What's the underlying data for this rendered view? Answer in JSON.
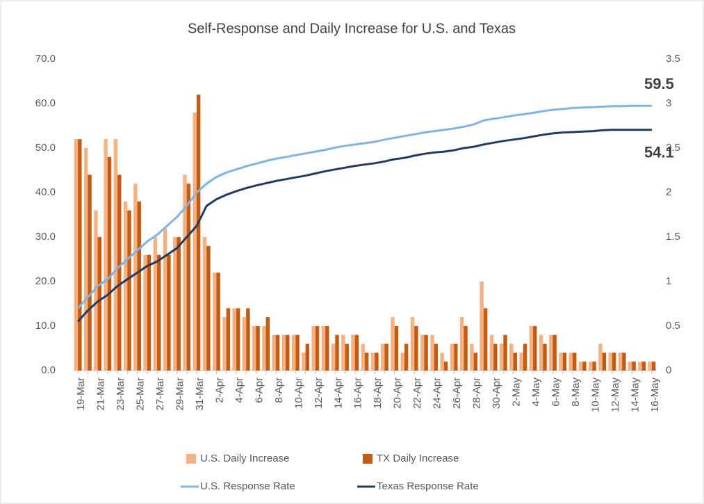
{
  "chart_data": {
    "type": "combo",
    "title": "Self-Response and Daily Increase for U.S. and Texas",
    "categories": [
      "19-Mar",
      null,
      "21-Mar",
      null,
      "23-Mar",
      null,
      "25-Mar",
      null,
      "27-Mar",
      null,
      "29-Mar",
      null,
      "31-Mar",
      null,
      "2-Apr",
      null,
      "4-Apr",
      null,
      "6-Apr",
      null,
      "8-Apr",
      null,
      "10-Apr",
      null,
      "12-Apr",
      null,
      "14-Apr",
      null,
      "16-Apr",
      null,
      "18-Apr",
      null,
      "20-Apr",
      null,
      "22-Apr",
      null,
      "24-Apr",
      null,
      "26-Apr",
      null,
      "28-Apr",
      null,
      "30-Apr",
      null,
      "2-May",
      null,
      "4-May",
      null,
      "6-May",
      null,
      "8-May",
      null,
      "10-May",
      null,
      "12-May",
      null,
      "14-May",
      null,
      "16-May"
    ],
    "ylim": [
      0,
      70
    ],
    "yticks": [
      {
        "value": 0,
        "label": "0.0"
      },
      {
        "value": 10,
        "label": "10.0"
      },
      {
        "value": 20,
        "label": "20.0"
      },
      {
        "value": 30,
        "label": "30.0"
      },
      {
        "value": 40,
        "label": "40.0"
      },
      {
        "value": 50,
        "label": "50.0"
      },
      {
        "value": 60,
        "label": "60.0"
      },
      {
        "value": 70,
        "label": "70.0"
      }
    ],
    "y2lim": [
      0,
      3.5
    ],
    "y2ticks": [
      0,
      0.5,
      1,
      1.5,
      2,
      2.5,
      3,
      3.5
    ],
    "grid": false,
    "legend": "bottom",
    "series": [
      {
        "name": "U.S. Daily Increase",
        "type": "bar",
        "axis": "y2",
        "color": "#f4b183",
        "values": [
          2.6,
          2.5,
          1.8,
          2.6,
          2.6,
          1.9,
          2.1,
          1.3,
          1.5,
          1.6,
          1.5,
          2.2,
          2.9,
          1.5,
          1.1,
          0.6,
          0.7,
          0.6,
          0.5,
          0.5,
          0.4,
          0.4,
          0.4,
          0.2,
          0.5,
          0.5,
          0.3,
          0.4,
          0.4,
          0.3,
          0.2,
          0.3,
          0.6,
          0.2,
          0.6,
          0.4,
          0.4,
          0.2,
          0.3,
          0.6,
          0.3,
          1.0,
          0.4,
          0.3,
          0.3,
          0.2,
          0.5,
          0.4,
          0.4,
          0.2,
          0.2,
          0.1,
          0.1,
          0.3,
          0.2,
          0.2,
          0.1,
          0.1,
          0.1
        ]
      },
      {
        "name": "TX Daily Increase",
        "type": "bar",
        "axis": "y2",
        "color": "#c55a11",
        "values": [
          2.6,
          2.2,
          1.5,
          2.4,
          2.2,
          1.8,
          1.9,
          1.3,
          1.3,
          1.3,
          1.5,
          2.1,
          3.1,
          1.4,
          1.1,
          0.7,
          0.7,
          0.7,
          0.5,
          0.6,
          0.4,
          0.4,
          0.4,
          0.3,
          0.5,
          0.5,
          0.4,
          0.3,
          0.4,
          0.2,
          0.2,
          0.3,
          0.5,
          0.3,
          0.5,
          0.4,
          0.3,
          0.1,
          0.3,
          0.5,
          0.2,
          0.7,
          0.3,
          0.4,
          0.2,
          0.3,
          0.5,
          0.3,
          0.4,
          0.2,
          0.2,
          0.1,
          0.1,
          0.2,
          0.2,
          0.2,
          0.1,
          0.1,
          0.1
        ]
      },
      {
        "name": "U.S. Response Rate",
        "type": "line",
        "color": "#7fb2e5",
        "label_last": "above",
        "values": [
          14,
          16.5,
          19,
          20.5,
          23,
          25,
          27,
          29,
          30.5,
          32.5,
          34.5,
          37,
          40,
          42,
          43.5,
          44.5,
          45.2,
          45.9,
          46.5,
          47.1,
          47.6,
          48,
          48.4,
          48.8,
          49.2,
          49.6,
          50.1,
          50.5,
          50.8,
          51.1,
          51.4,
          51.9,
          52.3,
          52.7,
          53.1,
          53.5,
          53.8,
          54.1,
          54.4,
          54.8,
          55.3,
          56.2,
          56.6,
          56.9,
          57.3,
          57.6,
          57.9,
          58.3,
          58.6,
          58.8,
          59.0,
          59.1,
          59.2,
          59.3,
          59.4,
          59.4,
          59.5,
          59.5,
          59.5
        ]
      },
      {
        "name": "Texas Response Rate",
        "type": "line",
        "color": "#1f3b63",
        "label_last": "below",
        "values": [
          11,
          13.5,
          15.5,
          17,
          19,
          20.5,
          22,
          23.5,
          24.5,
          26,
          27.5,
          30,
          32.5,
          37,
          38.5,
          39.5,
          40.3,
          41,
          41.6,
          42.1,
          42.6,
          43,
          43.4,
          43.8,
          44.3,
          44.8,
          45.2,
          45.6,
          46,
          46.3,
          46.6,
          47,
          47.5,
          47.8,
          48.3,
          48.7,
          49,
          49.2,
          49.5,
          50,
          50.3,
          50.8,
          51.2,
          51.6,
          51.9,
          52.2,
          52.6,
          53,
          53.3,
          53.5,
          53.6,
          53.7,
          53.8,
          54,
          54.1,
          54.1,
          54.1,
          54.1,
          54.1
        ]
      }
    ]
  }
}
